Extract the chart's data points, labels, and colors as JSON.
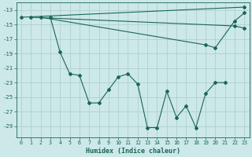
{
  "xlabel": "Humidex (Indice chaleur)",
  "bg_color": "#cce8e8",
  "grid_color": "#b0d0d0",
  "line_color": "#1a6655",
  "xlim": [
    -0.5,
    23.5
  ],
  "ylim": [
    -30.5,
    -12.0
  ],
  "xticks": [
    0,
    1,
    2,
    3,
    4,
    5,
    6,
    7,
    8,
    9,
    10,
    11,
    12,
    13,
    14,
    15,
    16,
    17,
    18,
    19,
    20,
    21,
    22,
    23
  ],
  "yticks": [
    -13,
    -15,
    -17,
    -19,
    -21,
    -23,
    -25,
    -27,
    -29
  ],
  "series": [
    {
      "x": [
        0,
        23
      ],
      "y": [
        -14.0,
        -12.6
      ]
    },
    {
      "x": [
        1,
        22,
        23
      ],
      "y": [
        -14.0,
        -15.2,
        -15.5
      ]
    },
    {
      "x": [
        2,
        19,
        20,
        22,
        23
      ],
      "y": [
        -14.0,
        -17.8,
        -18.2,
        -14.5,
        -13.4
      ]
    },
    {
      "x": [
        3,
        4,
        5,
        6,
        7,
        8,
        9,
        10,
        11,
        12,
        13,
        14,
        15,
        16,
        17,
        18,
        19,
        20,
        21
      ],
      "y": [
        -14.0,
        -18.8,
        -21.8,
        -22.0,
        -25.8,
        -25.8,
        -24.0,
        -22.2,
        -21.8,
        -23.2,
        -29.2,
        -29.2,
        -24.2,
        -27.8,
        -26.2,
        -29.2,
        -24.5,
        -23.0,
        -23.0
      ]
    }
  ]
}
